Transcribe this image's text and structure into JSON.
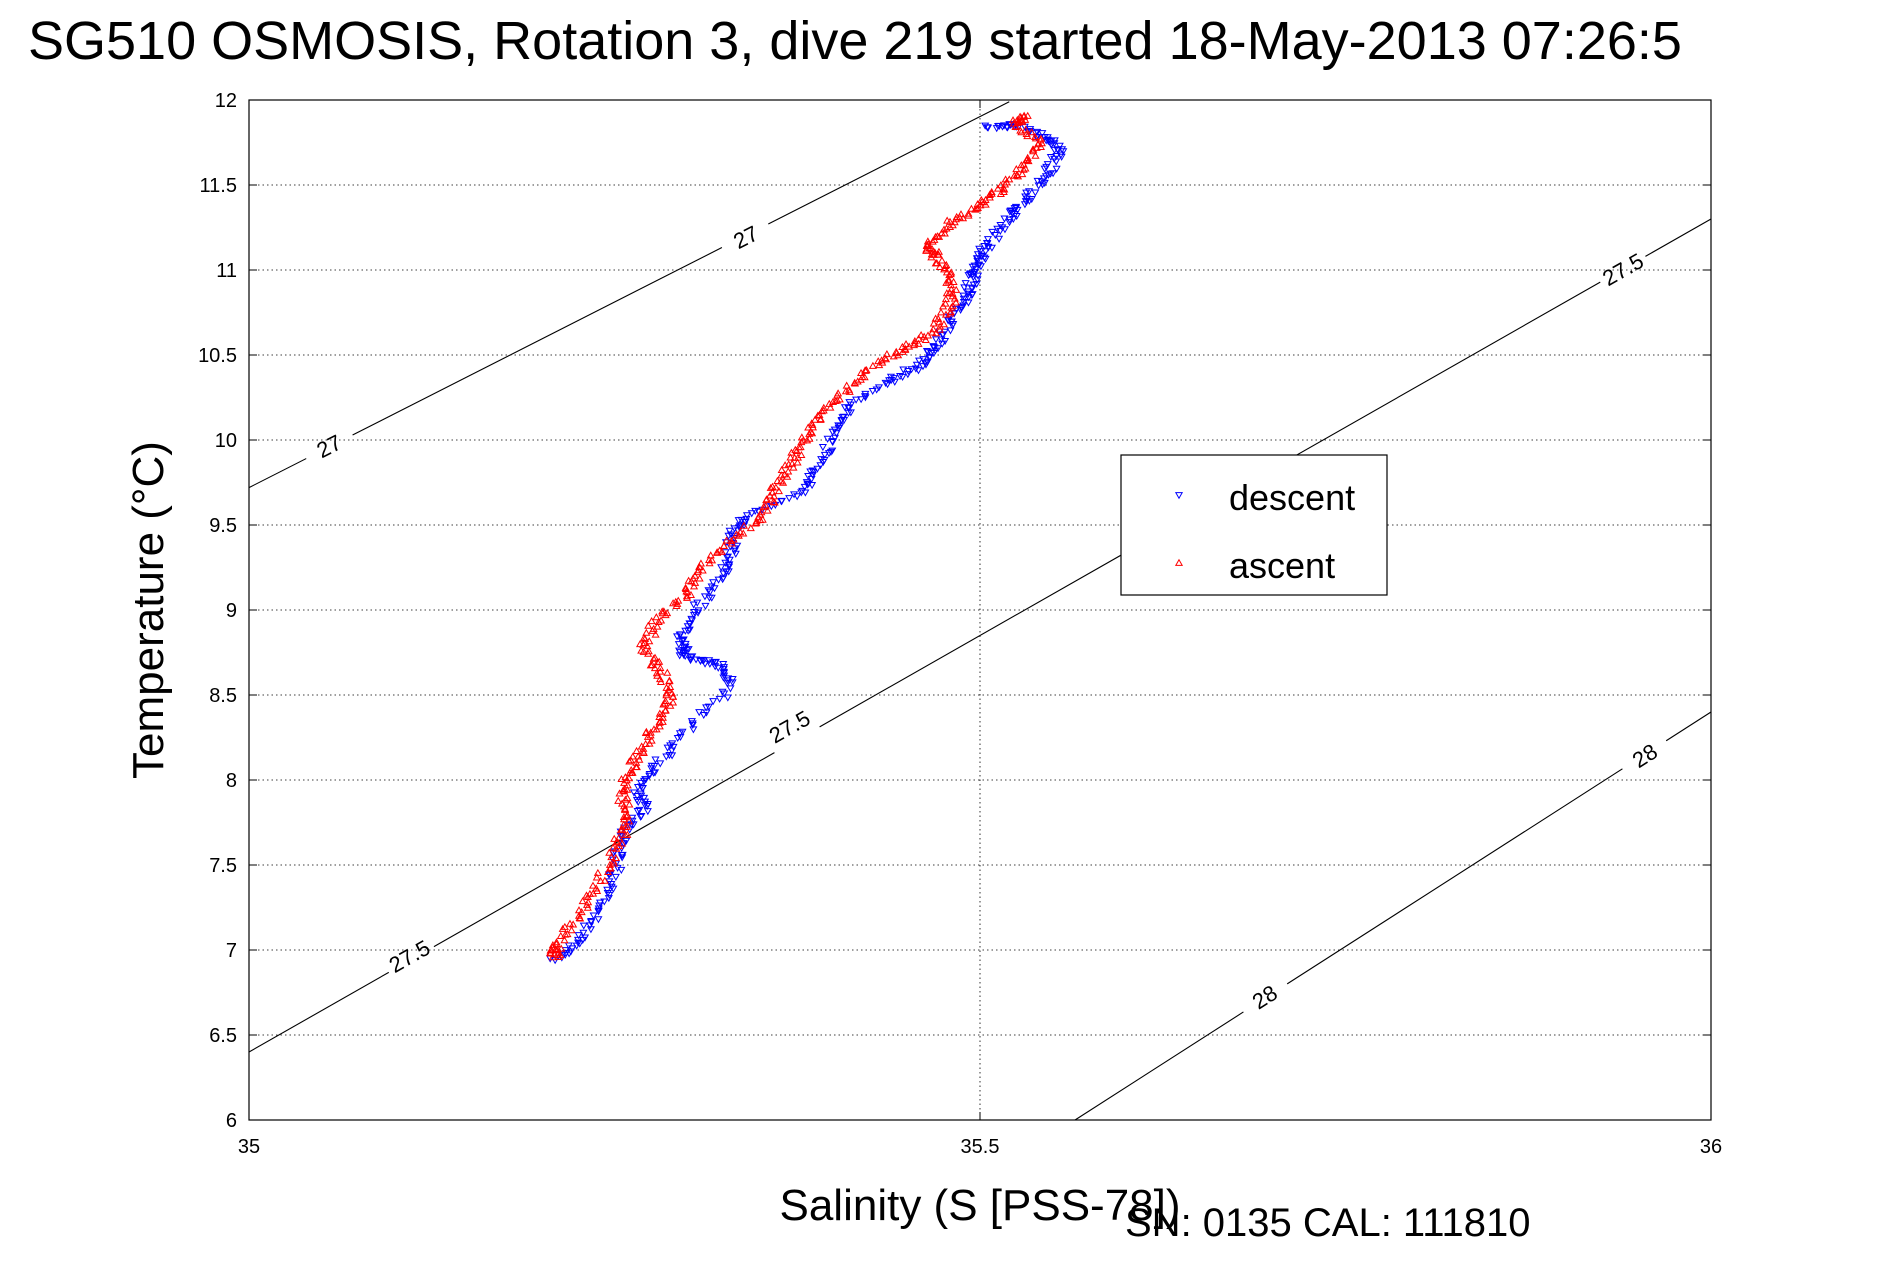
{
  "title": "SG510 OSMOSIS, Rotation 3, dive 219 started 18-May-2013 07:26:5",
  "footer": "SN: 0135  CAL: 111810",
  "chart_data": {
    "type": "scatter",
    "xlabel": "Salinity (S [PSS-78])",
    "ylabel": "Temperature (°C)",
    "xlim": [
      35,
      36
    ],
    "ylim": [
      6,
      12
    ],
    "xticks": [
      35,
      35.5,
      36
    ],
    "xtick_labels": [
      "35",
      "35.5",
      "36"
    ],
    "yticks": [
      6,
      6.5,
      7,
      7.5,
      8,
      8.5,
      9,
      9.5,
      10,
      10.5,
      11,
      11.5,
      12
    ],
    "ytick_labels": [
      "6",
      "6.5",
      "7",
      "7.5",
      "8",
      "8.5",
      "9",
      "9.5",
      "10",
      "10.5",
      "11",
      "11.5",
      "12"
    ],
    "grid": true,
    "legend_position": "right",
    "density_contours": [
      {
        "level": "27",
        "points": [
          [
            35,
            9.72
          ],
          [
            35.52,
            11.99
          ]
        ],
        "label_at": [
          [
            35.34,
            11.19
          ],
          [
            35.055,
            9.96
          ]
        ]
      },
      {
        "level": "27.5",
        "points": [
          [
            35,
            6.4
          ],
          [
            36,
            11.3
          ]
        ],
        "label_at": [
          [
            35.11,
            6.96
          ],
          [
            35.37,
            8.31
          ],
          [
            35.94,
            11.0
          ]
        ]
      },
      {
        "level": "28",
        "points": [
          [
            35.565,
            6.0
          ],
          [
            36,
            8.4
          ]
        ],
        "label_at": [
          [
            35.695,
            6.72
          ],
          [
            35.955,
            8.14
          ]
        ]
      }
    ],
    "series": [
      {
        "name": "descent",
        "color": "#0000ff",
        "marker": "triangle-down",
        "anchors": [
          [
            35.21,
            6.94
          ],
          [
            35.225,
            7.05
          ],
          [
            35.24,
            7.25
          ],
          [
            35.25,
            7.45
          ],
          [
            35.255,
            7.65
          ],
          [
            35.27,
            7.82
          ],
          [
            35.265,
            7.95
          ],
          [
            35.28,
            8.1
          ],
          [
            35.3,
            8.3
          ],
          [
            35.33,
            8.55
          ],
          [
            35.32,
            8.68
          ],
          [
            35.3,
            8.72
          ],
          [
            35.295,
            8.8
          ],
          [
            35.3,
            8.95
          ],
          [
            35.32,
            9.15
          ],
          [
            35.33,
            9.3
          ],
          [
            35.33,
            9.45
          ],
          [
            35.34,
            9.55
          ],
          [
            35.38,
            9.7
          ],
          [
            35.39,
            9.85
          ],
          [
            35.4,
            10.05
          ],
          [
            35.41,
            10.2
          ],
          [
            35.44,
            10.35
          ],
          [
            35.46,
            10.45
          ],
          [
            35.47,
            10.55
          ],
          [
            35.48,
            10.7
          ],
          [
            35.49,
            10.82
          ],
          [
            35.495,
            10.95
          ],
          [
            35.5,
            11.05
          ],
          [
            35.505,
            11.15
          ],
          [
            35.52,
            11.3
          ],
          [
            35.53,
            11.4
          ],
          [
            35.545,
            11.55
          ],
          [
            35.555,
            11.7
          ],
          [
            35.545,
            11.78
          ],
          [
            35.525,
            11.85
          ],
          [
            35.505,
            11.84
          ]
        ]
      },
      {
        "name": "ascent",
        "color": "#ff0000",
        "marker": "triangle-up",
        "anchors": [
          [
            35.21,
            6.96
          ],
          [
            35.21,
            7.02
          ],
          [
            35.225,
            7.2
          ],
          [
            35.24,
            7.4
          ],
          [
            35.25,
            7.6
          ],
          [
            35.26,
            7.75
          ],
          [
            35.255,
            7.9
          ],
          [
            35.26,
            8.05
          ],
          [
            35.27,
            8.2
          ],
          [
            35.28,
            8.35
          ],
          [
            35.29,
            8.5
          ],
          [
            35.28,
            8.65
          ],
          [
            35.27,
            8.8
          ],
          [
            35.28,
            8.95
          ],
          [
            35.3,
            9.1
          ],
          [
            35.31,
            9.25
          ],
          [
            35.33,
            9.4
          ],
          [
            35.35,
            9.55
          ],
          [
            35.36,
            9.7
          ],
          [
            35.37,
            9.85
          ],
          [
            35.38,
            10.0
          ],
          [
            35.39,
            10.15
          ],
          [
            35.41,
            10.3
          ],
          [
            35.43,
            10.45
          ],
          [
            35.45,
            10.55
          ],
          [
            35.47,
            10.65
          ],
          [
            35.48,
            10.8
          ],
          [
            35.48,
            10.95
          ],
          [
            35.47,
            11.08
          ],
          [
            35.465,
            11.15
          ],
          [
            35.48,
            11.28
          ],
          [
            35.5,
            11.38
          ],
          [
            35.515,
            11.48
          ],
          [
            35.53,
            11.6
          ],
          [
            35.54,
            11.75
          ],
          [
            35.525,
            11.87
          ],
          [
            35.53,
            11.9
          ]
        ]
      }
    ]
  }
}
